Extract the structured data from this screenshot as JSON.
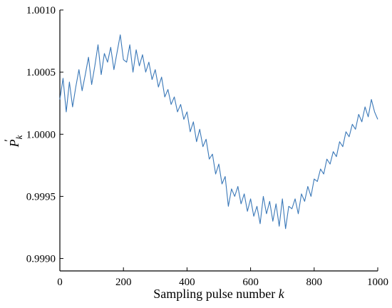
{
  "chart_data": {
    "type": "line",
    "title": "",
    "xlabel": "Sampling pulse number",
    "xlabel_var": "k",
    "ylabel_main": "P",
    "ylabel_prime": "′",
    "ylabel_sub": "k",
    "xlim": [
      0,
      1000
    ],
    "ylim": [
      0.9989,
      1.001
    ],
    "xticks": [
      {
        "value": 0,
        "label": "0"
      },
      {
        "value": 200,
        "label": "200"
      },
      {
        "value": 400,
        "label": "400"
      },
      {
        "value": 600,
        "label": "600"
      },
      {
        "value": 800,
        "label": "800"
      },
      {
        "value": 1000,
        "label": "1000"
      }
    ],
    "yticks": [
      {
        "value": 0.999,
        "label": "0.9990"
      },
      {
        "value": 0.9995,
        "label": "0.9995"
      },
      {
        "value": 1.0,
        "label": "1.0000"
      },
      {
        "value": 1.0005,
        "label": "1.0005"
      },
      {
        "value": 1.001,
        "label": "1.0010"
      }
    ],
    "grid": false,
    "line_color": "#3a78b8",
    "series": [
      {
        "x": [
          0,
          10,
          20,
          30,
          40,
          50,
          60,
          70,
          80,
          90,
          100,
          110,
          120,
          130,
          140,
          150,
          160,
          170,
          180,
          190,
          200,
          210,
          220,
          230,
          240,
          250,
          260,
          270,
          280,
          290,
          300,
          310,
          320,
          330,
          340,
          350,
          360,
          370,
          380,
          390,
          400,
          410,
          420,
          430,
          440,
          450,
          460,
          470,
          480,
          490,
          500,
          510,
          520,
          530,
          540,
          550,
          560,
          570,
          580,
          590,
          600,
          610,
          620,
          630,
          640,
          650,
          660,
          670,
          680,
          690,
          700,
          710,
          720,
          730,
          740,
          750,
          760,
          770,
          780,
          790,
          800,
          810,
          820,
          830,
          840,
          850,
          860,
          870,
          880,
          890,
          900,
          910,
          920,
          930,
          940,
          950,
          960,
          970,
          980,
          990,
          1000
        ],
        "y": [
          1.00028,
          1.00045,
          1.00018,
          1.00042,
          1.00022,
          1.00038,
          1.00052,
          1.00035,
          1.00048,
          1.00062,
          1.0004,
          1.00055,
          1.00072,
          1.00048,
          1.00065,
          1.00058,
          1.0007,
          1.00052,
          1.00066,
          1.0008,
          1.0006,
          1.00058,
          1.00072,
          1.0005,
          1.00068,
          1.00055,
          1.00064,
          1.0005,
          1.00058,
          1.00044,
          1.00052,
          1.00038,
          1.00046,
          1.0003,
          1.00036,
          1.00024,
          1.0003,
          1.00018,
          1.00024,
          1.00012,
          1.00018,
          1.00002,
          1.0001,
          0.99994,
          1.00004,
          0.9999,
          0.99996,
          0.9998,
          0.99984,
          0.99968,
          0.99976,
          0.9996,
          0.99966,
          0.99942,
          0.99956,
          0.9995,
          0.99958,
          0.99944,
          0.99952,
          0.99938,
          0.99948,
          0.99934,
          0.99942,
          0.99928,
          0.9995,
          0.99936,
          0.99946,
          0.9993,
          0.99944,
          0.99926,
          0.99948,
          0.99924,
          0.99942,
          0.9994,
          0.99948,
          0.99936,
          0.99952,
          0.99946,
          0.99958,
          0.9995,
          0.99964,
          0.99962,
          0.99972,
          0.99968,
          0.9998,
          0.99976,
          0.99986,
          0.99982,
          0.99994,
          0.9999,
          1.00002,
          0.99998,
          1.00008,
          1.00004,
          1.00016,
          1.0001,
          1.00022,
          1.00014,
          1.00028,
          1.00018,
          1.00012
        ]
      }
    ]
  }
}
